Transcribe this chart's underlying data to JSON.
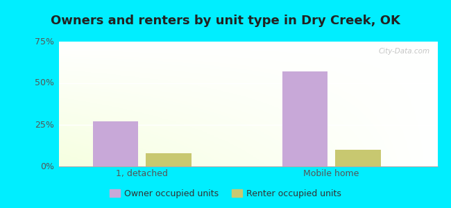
{
  "title": "Owners and renters by unit type in Dry Creek, OK",
  "categories": [
    "1, detached",
    "Mobile home"
  ],
  "owner_values": [
    27,
    57
  ],
  "renter_values": [
    8,
    10
  ],
  "owner_color": "#c8a8d8",
  "renter_color": "#c8c870",
  "ylim": [
    0,
    75
  ],
  "yticks": [
    0,
    25,
    50,
    75
  ],
  "ytick_labels": [
    "0%",
    "25%",
    "50%",
    "75%"
  ],
  "bar_width": 0.12,
  "legend_owner": "Owner occupied units",
  "legend_renter": "Renter occupied units",
  "bg_color_outer": "#00eeff",
  "watermark": "City-Data.com",
  "title_fontsize": 13,
  "tick_fontsize": 9
}
